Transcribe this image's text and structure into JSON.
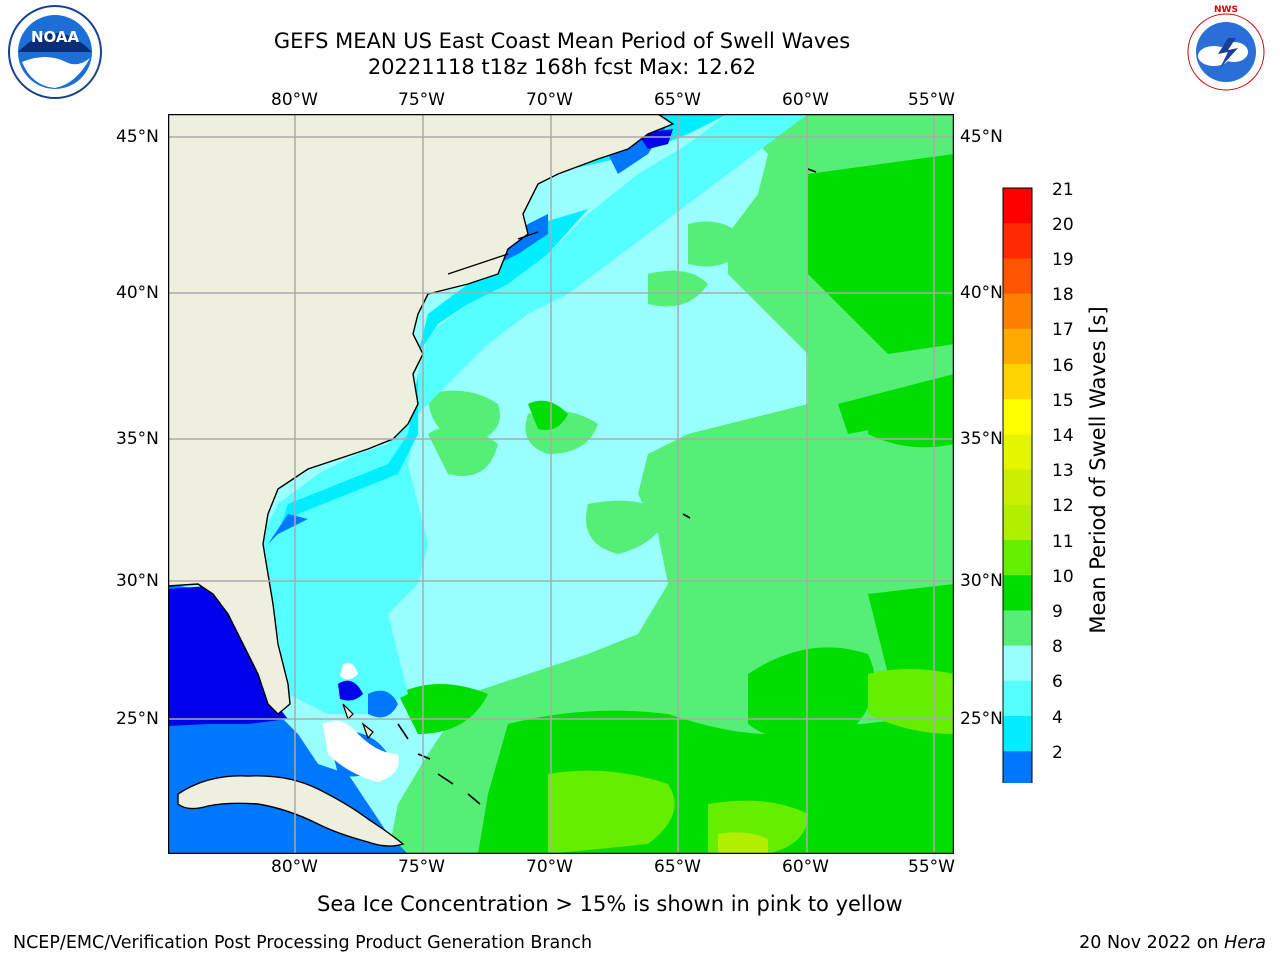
{
  "header": {
    "title_line1": "GEFS MEAN US East Coast Mean Period of Swell Waves",
    "title_line2": "20221118 t18z 168h fcst   Max: 12.62"
  },
  "logos": {
    "left": "noaa-logo",
    "right": "national-weather-service-logo",
    "noaa_text": "NOAA",
    "nws_text": "NATIONAL WEATHER SERVICE"
  },
  "map": {
    "lon_labels": [
      "80°W",
      "75°W",
      "70°W",
      "65°W",
      "60°W",
      "55°W"
    ],
    "lat_labels": [
      "45°N",
      "40°N",
      "35°N",
      "30°N",
      "25°N"
    ],
    "lon_range": [
      -85,
      -54
    ],
    "lat_range": [
      20.5,
      45.5
    ]
  },
  "colorbar": {
    "label": "Mean Period of Swell Waves [s]",
    "ticks": [
      "21",
      "20",
      "19",
      "18",
      "17",
      "16",
      "15",
      "14",
      "13",
      "12",
      "11",
      "10",
      "9",
      "8",
      "6",
      "4",
      "2"
    ],
    "colors": [
      "#ff0000",
      "#ff2a00",
      "#ff5500",
      "#ff7f00",
      "#ffaa00",
      "#ffd400",
      "#ffff00",
      "#e5f500",
      "#ccee00",
      "#b2ee00",
      "#66ee00",
      "#00dd00",
      "#55ee77",
      "#99ffff",
      "#55ffff",
      "#00eeff",
      "#0077ff",
      "#0000ee"
    ]
  },
  "note": "Sea Ice Concentration > 15% is shown in pink to yellow",
  "footer": {
    "left": "NCEP/EMC/Verification Post Processing Product Generation Branch",
    "right_date": "20 Nov 2022 on",
    "right_host": "Hera"
  }
}
